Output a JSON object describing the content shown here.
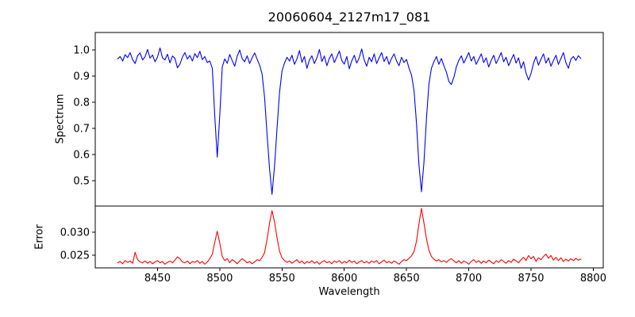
{
  "chart_data": {
    "type": "line",
    "title": "20060604_2127m17_081",
    "xlabel": "Wavelength",
    "grid": false,
    "legend": "none",
    "xlim": [
      8400,
      8808
    ],
    "xticks": [
      8450,
      8500,
      8550,
      8600,
      8650,
      8700,
      8750,
      8800
    ],
    "xtick_labels": [
      "8450",
      "8500",
      "8550",
      "8600",
      "8650",
      "8700",
      "8750",
      "8800"
    ],
    "x": [
      8418,
      8420,
      8422,
      8424,
      8426,
      8428,
      8430,
      8432,
      8434,
      8436,
      8438,
      8440,
      8442,
      8444,
      8446,
      8448,
      8450,
      8452,
      8454,
      8456,
      8458,
      8460,
      8462,
      8464,
      8466,
      8468,
      8470,
      8472,
      8474,
      8476,
      8478,
      8480,
      8482,
      8484,
      8486,
      8488,
      8490,
      8492,
      8494,
      8496,
      8498,
      8500,
      8502,
      8504,
      8506,
      8508,
      8510,
      8512,
      8514,
      8516,
      8518,
      8520,
      8522,
      8524,
      8526,
      8528,
      8530,
      8532,
      8534,
      8536,
      8538,
      8540,
      8542,
      8544,
      8546,
      8548,
      8550,
      8552,
      8554,
      8556,
      8558,
      8560,
      8562,
      8564,
      8566,
      8568,
      8570,
      8572,
      8574,
      8576,
      8578,
      8580,
      8582,
      8584,
      8586,
      8588,
      8590,
      8592,
      8594,
      8596,
      8598,
      8600,
      8602,
      8604,
      8606,
      8608,
      8610,
      8612,
      8614,
      8616,
      8618,
      8620,
      8622,
      8624,
      8626,
      8628,
      8630,
      8632,
      8634,
      8636,
      8638,
      8640,
      8642,
      8644,
      8646,
      8648,
      8650,
      8652,
      8654,
      8656,
      8658,
      8660,
      8662,
      8664,
      8666,
      8668,
      8670,
      8672,
      8674,
      8676,
      8678,
      8680,
      8682,
      8684,
      8686,
      8688,
      8690,
      8692,
      8694,
      8696,
      8698,
      8700,
      8702,
      8704,
      8706,
      8708,
      8710,
      8712,
      8714,
      8716,
      8718,
      8720,
      8722,
      8724,
      8726,
      8728,
      8730,
      8732,
      8734,
      8736,
      8738,
      8740,
      8742,
      8744,
      8746,
      8748,
      8750,
      8752,
      8754,
      8756,
      8758,
      8760,
      8762,
      8764,
      8766,
      8768,
      8770,
      8772,
      8774,
      8776,
      8778,
      8780,
      8782,
      8784,
      8786,
      8788,
      8790
    ],
    "absorption_line_centers": [
      8498,
      8542,
      8662
    ],
    "panels": [
      {
        "name": "spectrum",
        "ylabel": "Spectrum",
        "color": "#0000ff",
        "ylim": [
          0.403,
          1.067
        ],
        "yticks": [
          0.5,
          0.6,
          0.7,
          0.8,
          0.9,
          1.0
        ],
        "ytick_labels": [
          "0.5",
          "0.6",
          "0.7",
          "0.8",
          "0.9",
          "1.0"
        ],
        "y": [
          0.966,
          0.975,
          0.958,
          0.982,
          0.971,
          0.99,
          0.963,
          0.948,
          0.978,
          0.989,
          0.962,
          0.974,
          1.002,
          0.969,
          0.981,
          0.955,
          0.973,
          1.008,
          0.97,
          0.962,
          0.984,
          0.951,
          0.977,
          0.968,
          0.932,
          0.946,
          0.973,
          0.99,
          0.965,
          0.979,
          0.958,
          0.986,
          0.971,
          0.995,
          0.963,
          0.975,
          0.952,
          0.958,
          0.93,
          0.745,
          0.59,
          0.752,
          0.935,
          0.966,
          0.949,
          0.983,
          0.96,
          0.938,
          0.976,
          1.0,
          0.967,
          0.955,
          0.978,
          0.948,
          0.97,
          0.989,
          0.965,
          0.942,
          0.908,
          0.82,
          0.676,
          0.545,
          0.448,
          0.558,
          0.7,
          0.838,
          0.92,
          0.95,
          0.972,
          0.958,
          0.98,
          0.945,
          0.966,
          0.998,
          0.953,
          0.975,
          0.93,
          0.962,
          0.978,
          0.948,
          0.97,
          1.002,
          0.956,
          0.977,
          0.94,
          0.968,
          0.985,
          0.952,
          0.973,
          0.996,
          0.96,
          0.946,
          0.975,
          0.928,
          0.958,
          0.98,
          0.95,
          0.97,
          1.004,
          0.962,
          0.938,
          0.972,
          0.955,
          0.985,
          0.948,
          0.97,
          0.99,
          0.956,
          0.975,
          0.945,
          0.968,
          0.985,
          0.958,
          0.94,
          0.972,
          0.952,
          0.964,
          0.93,
          0.905,
          0.845,
          0.72,
          0.56,
          0.458,
          0.57,
          0.74,
          0.87,
          0.93,
          0.955,
          0.975,
          0.945,
          0.968,
          0.94,
          0.915,
          0.88,
          0.868,
          0.895,
          0.935,
          0.96,
          0.978,
          0.95,
          0.97,
          0.99,
          0.958,
          0.975,
          0.945,
          0.965,
          0.985,
          0.952,
          0.97,
          0.935,
          0.96,
          0.98,
          0.948,
          0.968,
          0.99,
          0.955,
          0.972,
          0.94,
          0.962,
          0.983,
          0.95,
          0.97,
          0.93,
          0.955,
          0.912,
          0.885,
          0.91,
          0.95,
          0.975,
          0.942,
          0.965,
          0.985,
          0.95,
          0.97,
          0.938,
          0.96,
          0.98,
          0.945,
          0.968,
          0.99,
          0.952,
          0.93,
          0.965,
          0.975,
          0.96,
          0.978,
          0.968
        ]
      },
      {
        "name": "error",
        "ylabel": "Error",
        "color": "#ff0000",
        "ylim": [
          0.0222,
          0.0357
        ],
        "yticks": [
          0.025,
          0.03
        ],
        "ytick_labels": [
          "0.025",
          "0.030"
        ],
        "y": [
          0.0233,
          0.0236,
          0.0231,
          0.0238,
          0.0234,
          0.0237,
          0.0232,
          0.0256,
          0.024,
          0.0235,
          0.0233,
          0.0237,
          0.0232,
          0.0236,
          0.0231,
          0.0235,
          0.0238,
          0.0233,
          0.0236,
          0.023,
          0.0234,
          0.0237,
          0.0233,
          0.0239,
          0.0246,
          0.0242,
          0.0235,
          0.0233,
          0.0237,
          0.0231,
          0.0236,
          0.0234,
          0.0238,
          0.0232,
          0.0236,
          0.023,
          0.0235,
          0.0242,
          0.0252,
          0.0278,
          0.0302,
          0.0276,
          0.0247,
          0.0238,
          0.0242,
          0.0233,
          0.024,
          0.0236,
          0.0231,
          0.0237,
          0.0242,
          0.0238,
          0.0233,
          0.0236,
          0.0231,
          0.0235,
          0.024,
          0.0238,
          0.0245,
          0.0255,
          0.0285,
          0.032,
          0.0347,
          0.0322,
          0.0288,
          0.0258,
          0.0244,
          0.0238,
          0.0234,
          0.0237,
          0.0232,
          0.0236,
          0.024,
          0.0233,
          0.0237,
          0.0231,
          0.0236,
          0.0233,
          0.0238,
          0.0232,
          0.0236,
          0.023,
          0.0235,
          0.0238,
          0.0233,
          0.0236,
          0.0231,
          0.0237,
          0.0234,
          0.0238,
          0.0232,
          0.0236,
          0.0233,
          0.0239,
          0.0234,
          0.0237,
          0.0231,
          0.0235,
          0.0238,
          0.0233,
          0.0236,
          0.0232,
          0.0237,
          0.0234,
          0.0238,
          0.0231,
          0.0235,
          0.0239,
          0.0233,
          0.0236,
          0.0232,
          0.0237,
          0.0234,
          0.023,
          0.0236,
          0.024,
          0.0238,
          0.0243,
          0.0248,
          0.0258,
          0.028,
          0.0318,
          0.0352,
          0.032,
          0.0285,
          0.026,
          0.0247,
          0.0241,
          0.0237,
          0.024,
          0.0235,
          0.0238,
          0.0234,
          0.0239,
          0.0242,
          0.0237,
          0.0233,
          0.0238,
          0.0232,
          0.0237,
          0.0234,
          0.023,
          0.0236,
          0.024,
          0.0234,
          0.0238,
          0.0232,
          0.0237,
          0.0233,
          0.0239,
          0.0235,
          0.0231,
          0.0238,
          0.0234,
          0.024,
          0.0236,
          0.0232,
          0.0238,
          0.0234,
          0.0241,
          0.0237,
          0.0233,
          0.024,
          0.0245,
          0.0238,
          0.0249,
          0.0242,
          0.0247,
          0.0236,
          0.0244,
          0.024,
          0.0247,
          0.0252,
          0.0243,
          0.0249,
          0.0239,
          0.0245,
          0.0238,
          0.0244,
          0.0236,
          0.0241,
          0.0237,
          0.0242,
          0.0238,
          0.0243,
          0.0239,
          0.0241
        ]
      }
    ],
    "colors": {
      "spectrum_line": "#0000ff",
      "error_line": "#ff0000",
      "axis": "#000000",
      "background": "#ffffff"
    }
  }
}
